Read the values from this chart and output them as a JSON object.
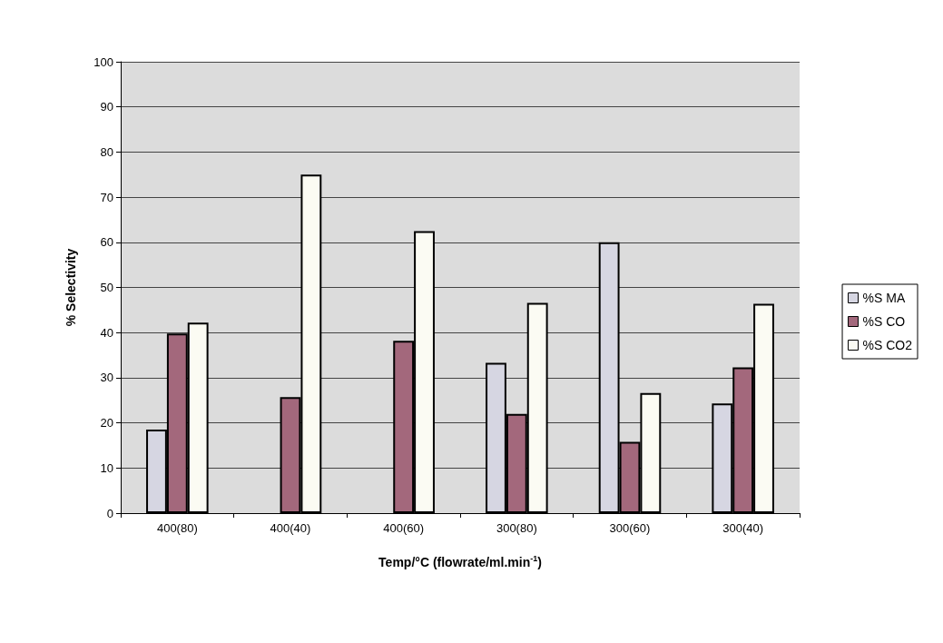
{
  "chart_data": {
    "type": "bar",
    "xlabel": "Temp/°C (flowrate/ml.min$^{-1}$)",
    "ylabel": "% Selectivity",
    "categories": [
      "400(80)",
      "400(40)",
      "400(60)",
      "300(80)",
      "300(60)",
      "300(40)"
    ],
    "series": [
      {
        "name": "%S MA",
        "color": "#d6d6e2",
        "values": [
          18.5,
          0,
          0,
          33.3,
          60,
          24.3
        ]
      },
      {
        "name": "%S CO",
        "color": "#a3687c",
        "values": [
          39.8,
          25.7,
          38.2,
          22,
          15.8,
          32.3
        ]
      },
      {
        "name": "%S CO2",
        "color": "#fbfbf3",
        "values": [
          42.2,
          75,
          62.5,
          46.6,
          26.6,
          46.4
        ]
      }
    ],
    "ylim": [
      0,
      100
    ],
    "yticks": [
      0,
      10,
      20,
      30,
      40,
      50,
      60,
      70,
      80,
      90,
      100
    ],
    "grid": "y",
    "legend": "right"
  }
}
